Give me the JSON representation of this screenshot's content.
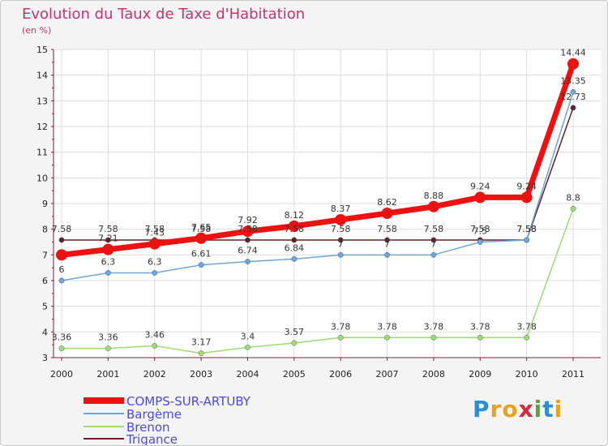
{
  "title": "Evolution du Taux de Taxe d'Habitation",
  "subtitle": "(en %)",
  "logo": {
    "text": "Proxiti",
    "colors": [
      "#2a8fd6",
      "#e8a31c",
      "#e8a31c",
      "#d8263a",
      "#5aa630",
      "#2a8fd6",
      "#e8a31c"
    ]
  },
  "chart_data": {
    "type": "line",
    "title": "Evolution du Taux de Taxe d'Habitation",
    "ylabel": "(en %)",
    "x": [
      "2000",
      "2001",
      "2002",
      "2003",
      "2004",
      "2005",
      "2006",
      "2007",
      "2008",
      "2009",
      "2010",
      "2011"
    ],
    "ylim": [
      3,
      15
    ],
    "yticks": [
      3,
      4,
      5,
      6,
      7,
      8,
      9,
      10,
      11,
      12,
      13,
      14,
      15
    ],
    "legend_position": "bottom-left",
    "series": [
      {
        "name": "Trigance",
        "color": "#6b1f24",
        "width": 1.5,
        "values": [
          7.58,
          7.58,
          7.58,
          7.58,
          7.58,
          7.58,
          7.58,
          7.58,
          7.58,
          7.58,
          7.58,
          12.73
        ],
        "labels": [
          "7.58",
          "7.58",
          "7.58",
          "7.58",
          "7.58",
          "7.58",
          "7.58",
          "7.58",
          "7.58",
          "7.58",
          "7.58",
          "12.73"
        ]
      },
      {
        "name": "Brenon",
        "color": "#9ddc6e",
        "width": 1.5,
        "values": [
          3.36,
          3.36,
          3.46,
          3.17,
          3.4,
          3.57,
          3.78,
          3.78,
          3.78,
          3.78,
          3.78,
          8.8
        ],
        "labels": [
          "3.36",
          "3.36",
          "3.46",
          "3.17",
          "3.4",
          "3.57",
          "3.78",
          "3.78",
          "3.78",
          "3.78",
          "3.78",
          "8.8"
        ]
      },
      {
        "name": "Bargème",
        "color": "#6ea6d8",
        "width": 1.5,
        "values": [
          6,
          6.3,
          6.3,
          6.61,
          6.74,
          6.84,
          7,
          7,
          7,
          7.5,
          7.58,
          13.35
        ],
        "labels": [
          "6",
          "6.3",
          "6.3",
          "6.61",
          "6.74",
          "6.84",
          "7",
          "7",
          "7",
          "7.5",
          "7.58",
          "13.35"
        ]
      },
      {
        "name": "COMPS-SUR-ARTUBY",
        "color": "#ee1111",
        "width": 7,
        "values": [
          7,
          7.21,
          7.43,
          7.65,
          7.92,
          8.12,
          8.37,
          8.62,
          8.88,
          9.24,
          9.24,
          14.44
        ],
        "labels": [
          "",
          "7.21",
          "7.43",
          "7.65",
          "7.92",
          "8.12",
          "8.37",
          "8.62",
          "8.88",
          "9.24",
          "9.24",
          "14.44"
        ]
      }
    ],
    "legend": [
      "COMPS-SUR-ARTUBY",
      "Bargème",
      "Brenon",
      "Trigance"
    ]
  }
}
